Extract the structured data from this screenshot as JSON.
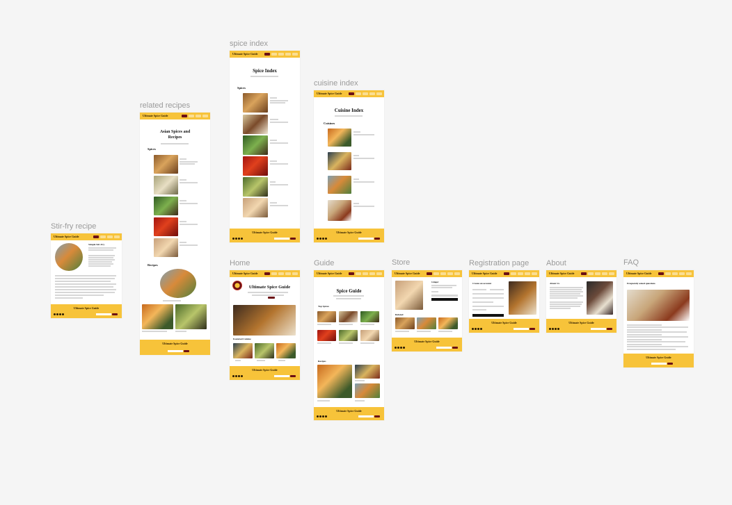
{
  "frames": {
    "stirfry": {
      "label": "Stir-fry recipe",
      "brand": "Ultimate Spice Guide",
      "recipe_title": "Simple Stir-Fry",
      "footer": "Ultimate Spice Guide"
    },
    "related": {
      "label": "related recipes",
      "brand": "Ultimate Spice Guide",
      "title_line1": "Asian Spices and",
      "title_line2": "Recipes",
      "spices_heading": "Spices",
      "recipes_heading": "Recipes",
      "footer": "Ultimate Spice Guide"
    },
    "spiceindex": {
      "label": "spice index",
      "brand": "Ultimate Spice Guide",
      "title": "Spice Index",
      "spices_heading": "Spices",
      "footer": "Ultimate Spice Guide"
    },
    "cuisineindex": {
      "label": "cuisine index",
      "brand": "Ultimate Spice Guide",
      "title": "Cuisine Index",
      "cuisines_heading": "Cuisines",
      "footer": "Ultimate Spice Guide"
    },
    "home": {
      "label": "Home",
      "brand": "Ultimate Spice Guide",
      "title": "Ultimate Spice Guide",
      "featured_heading": "Featured Cuisine",
      "footer": "Ultimate Spice Guide"
    },
    "guide": {
      "label": "Guide",
      "brand": "Ultimate Spice Guide",
      "title": "Spice Guide",
      "top_spices": "Top Spices",
      "recipes_heading": "Recipes",
      "footer": "Ultimate Spice Guide"
    },
    "store": {
      "label": "Store",
      "brand": "Ultimate Spice Guide",
      "product": "Ginger",
      "section": "Related",
      "footer": "Ultimate Spice Guide"
    },
    "registration": {
      "label": "Registration page",
      "brand": "Ultimate Spice Guide",
      "heading": "Create an account",
      "footer": "Ultimate Spice Guide"
    },
    "about": {
      "label": "About",
      "brand": "Ultimate Spice Guide",
      "heading": "About Us",
      "footer": "Ultimate Spice Guide"
    },
    "faq": {
      "label": "FAQ",
      "brand": "Ultimate Spice Guide",
      "heading": "Frequently asked questions",
      "footer": "Ultimate Spice Guide"
    }
  }
}
